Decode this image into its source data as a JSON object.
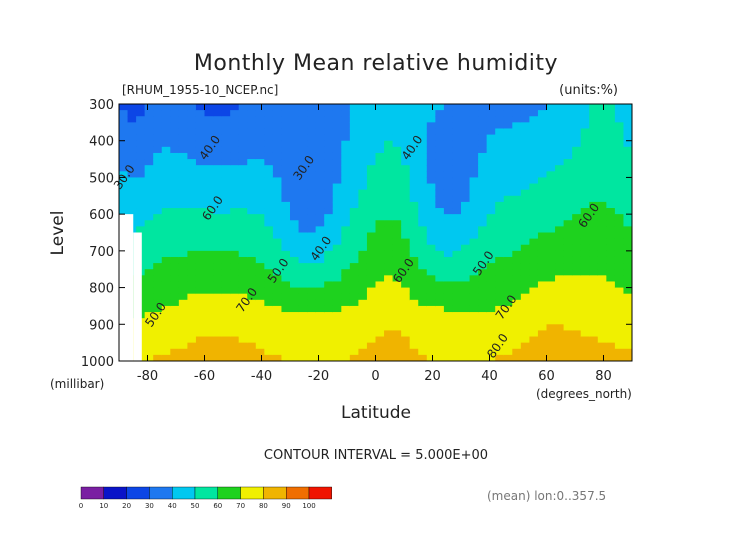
{
  "chart_data": {
    "type": "heatmap",
    "title": "Monthly Mean relative humidity",
    "subtitle_left": "[RHUM_1955-10_NCEP.nc]",
    "subtitle_right": "(units:%)",
    "xlabel": "Latitude",
    "x_units": "(degrees_north)",
    "ylabel": "Level",
    "y_units": "(millibar)",
    "xlim": [
      -90,
      90
    ],
    "ylim": [
      1000,
      300
    ],
    "xticks": [
      -80,
      -60,
      -40,
      -20,
      0,
      20,
      40,
      60,
      80
    ],
    "yticks": [
      300,
      400,
      500,
      600,
      700,
      800,
      900,
      1000
    ],
    "contour_interval_text": "CONTOUR INTERVAL = 5.000E+00",
    "footer_text": "(mean) lon:0..357.5",
    "contour_labels": [
      {
        "text": "40.0",
        "lat": -57,
        "lev": 425
      },
      {
        "text": "30.0",
        "lat": -87,
        "lev": 505
      },
      {
        "text": "60.0",
        "lat": -56,
        "lev": 590
      },
      {
        "text": "30.0",
        "lat": -24,
        "lev": 480
      },
      {
        "text": "40.0",
        "lat": -18,
        "lev": 700
      },
      {
        "text": "50.0",
        "lat": -33,
        "lev": 760
      },
      {
        "text": "70.0",
        "lat": -44,
        "lev": 840
      },
      {
        "text": "60.0",
        "lat": 11,
        "lev": 760
      },
      {
        "text": "40.0",
        "lat": 14,
        "lev": 425
      },
      {
        "text": "50.0",
        "lat": 39,
        "lev": 740
      },
      {
        "text": "70.0",
        "lat": 47,
        "lev": 860
      },
      {
        "text": "80.0",
        "lat": 44,
        "lev": 965
      },
      {
        "text": "60.0",
        "lat": 76,
        "lev": 610
      },
      {
        "text": "50.0",
        "lat": -76,
        "lev": 880
      }
    ],
    "colorbar": {
      "levels": [
        0,
        10,
        20,
        30,
        40,
        50,
        60,
        70,
        80,
        90,
        100
      ],
      "colors": [
        "#7a1fa2",
        "#0a14c8",
        "#0c46e6",
        "#1e78f0",
        "#00c8f0",
        "#00e6a0",
        "#1ed21e",
        "#f0f000",
        "#f0b400",
        "#f06e00",
        "#f01400"
      ]
    }
  }
}
